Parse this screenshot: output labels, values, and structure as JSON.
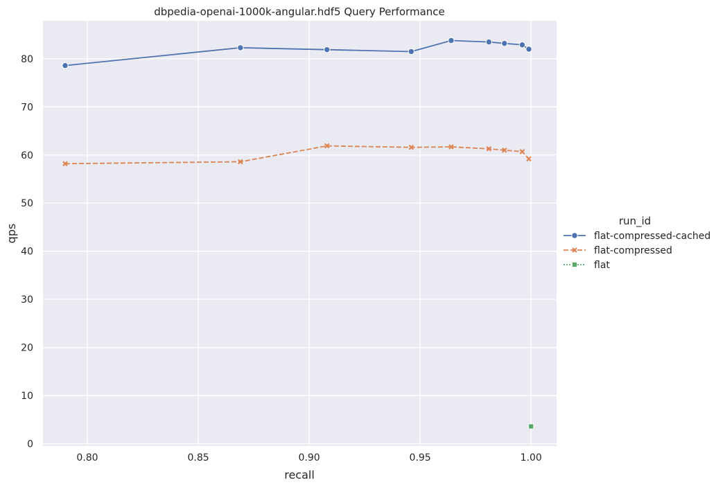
{
  "chart_data": {
    "type": "line",
    "title": "dbpedia-openai-1000k-angular.hdf5 Query Performance",
    "xlabel": "recall",
    "ylabel": "qps",
    "xlim": [
      0.78,
      1.0115
    ],
    "ylim": [
      -0.5,
      87.9
    ],
    "xticks": [
      0.8,
      0.85,
      0.9,
      0.95,
      1.0
    ],
    "xtick_labels": [
      "0.80",
      "0.85",
      "0.90",
      "0.95",
      "1.00"
    ],
    "yticks": [
      0,
      10,
      20,
      30,
      40,
      50,
      60,
      70,
      80
    ],
    "ytick_labels": [
      "0",
      "10",
      "20",
      "30",
      "40",
      "50",
      "60",
      "70",
      "80"
    ],
    "grid": true,
    "legend": {
      "title": "run_id",
      "placement": "right"
    },
    "series": [
      {
        "name": "flat-compressed-cached",
        "color": "#4c72b0",
        "marker": "circle",
        "dash": "solid",
        "x": [
          0.79,
          0.869,
          0.908,
          0.946,
          0.964,
          0.981,
          0.988,
          0.996,
          0.999
        ],
        "y": [
          78.6,
          82.3,
          81.9,
          81.5,
          83.8,
          83.5,
          83.2,
          82.9,
          82.0
        ]
      },
      {
        "name": "flat-compressed",
        "color": "#dd8452",
        "marker": "x",
        "dash": "dashed",
        "x": [
          0.79,
          0.869,
          0.908,
          0.946,
          0.964,
          0.981,
          0.988,
          0.996,
          0.999
        ],
        "y": [
          58.2,
          58.6,
          61.9,
          61.6,
          61.7,
          61.3,
          61.0,
          60.7,
          59.2
        ]
      },
      {
        "name": "flat",
        "color": "#55a868",
        "marker": "square",
        "dash": "dotted",
        "x": [
          1.0
        ],
        "y": [
          3.6
        ]
      }
    ]
  }
}
